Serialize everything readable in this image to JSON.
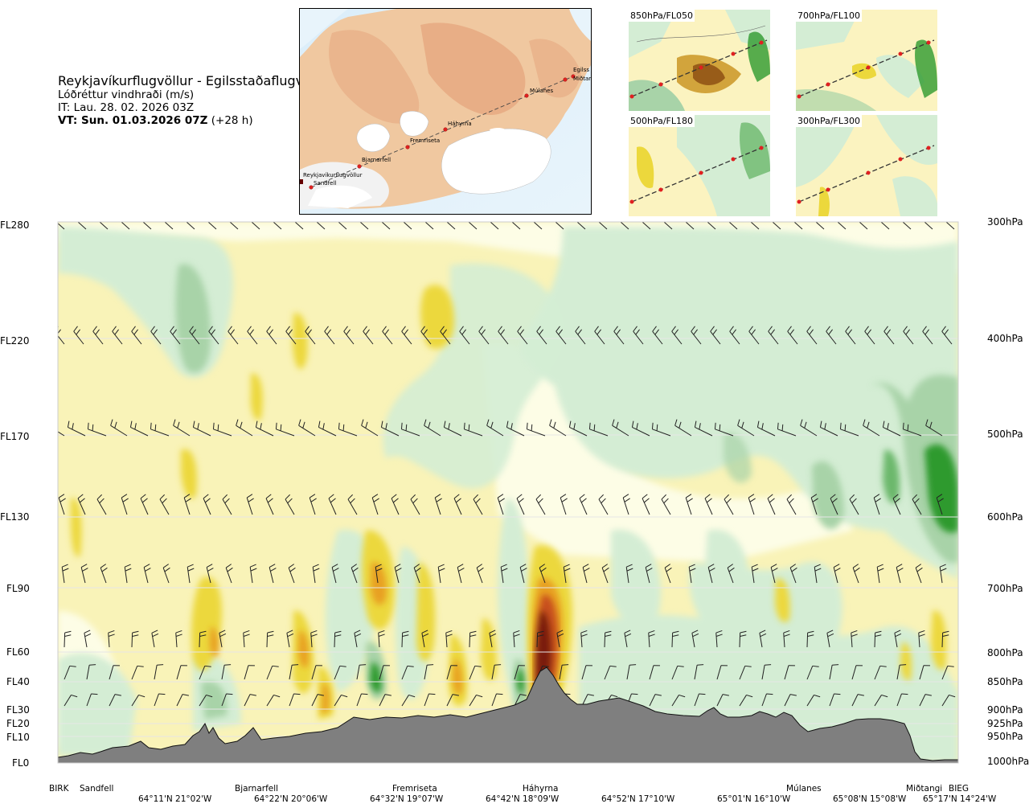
{
  "header": {
    "route": "Reykjavíkurflugvöllur - Egilsstaðaflugvöllur",
    "product": "Lóðréttur vindhraði (m/s)",
    "issue_time": "IT: Lau. 28. 02. 2026 03Z",
    "valid_time_bold": "VT: Sun. 01.03.2026 07Z",
    "valid_time_offset": " (+28 h)"
  },
  "main_map": {
    "stations": [
      "Reykjavíkurflugvöllur",
      "Sandfell",
      "Bjarnarfell",
      "Fremriseta",
      "Háhyrna",
      "Múlanes",
      "Egilss",
      "Miðtangi"
    ]
  },
  "insets": [
    {
      "label": "850hPa/FL050"
    },
    {
      "label": "700hPa/FL100"
    },
    {
      "label": "500hPa/FL180"
    },
    {
      "label": "300hPa/FL300"
    }
  ],
  "chart_data": {
    "type": "heatmap",
    "title": "Lóðréttur vindhraði (m/s)",
    "left_axis_flight_levels": [
      "FL280",
      "FL220",
      "FL170",
      "FL130",
      "FL90",
      "FL60",
      "FL40",
      "FL30",
      "FL20",
      "FL10",
      "FL0"
    ],
    "right_axis_pressure_levels": [
      "300hPa",
      "400hPa",
      "500hPa",
      "600hPa",
      "700hPa",
      "800hPa",
      "850hPa",
      "900hPa",
      "925hPa",
      "950hPa",
      "1000hPa"
    ],
    "x_station_labels": [
      "BIRK",
      "Sandfell",
      "Bjarnarfell",
      "Fremriseta",
      "Háhyrna",
      "Múlanes",
      "Miðtangi",
      "BIEG"
    ],
    "x_coordinate_labels": [
      "64°11'N 21°02'W",
      "64°22'N 20°06'W",
      "64°32'N 19°07'W",
      "64°42'N 18°09'W",
      "64°52'N 17°10'W",
      "65°01'N 16°10'W",
      "65°08'N 15°08'W",
      "65°17'N 14°24'W"
    ],
    "color_scale": {
      "strong_down": "#2e9a2e",
      "moderate_down": "#a8d3a8",
      "weak_down": "#d4edd4",
      "near_zero": "#fdfde0",
      "weak_up": "#f8f0a8",
      "moderate_up": "#ecd83c",
      "strong_up": "#e8a020",
      "very_strong_up": "#7a1a0a",
      "terrain": "#808080"
    },
    "grid": true
  }
}
